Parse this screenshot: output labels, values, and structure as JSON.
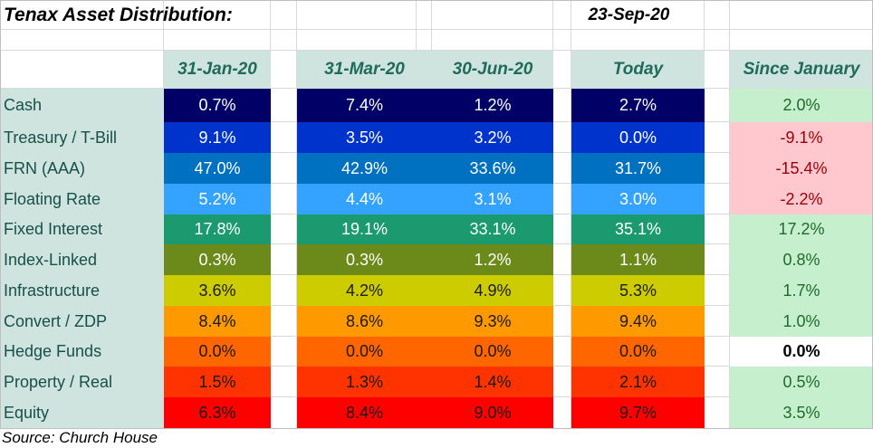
{
  "title": "Tenax Asset Distribution:",
  "date": "23-Sep-20",
  "source": "Source: Church House",
  "colors": {
    "header_fill": "#cfe3df",
    "header_text": "#1f6b5a",
    "positive_fill": "#c6efce",
    "positive_text": "#1e6b2a",
    "negative_fill": "#ffc7ce",
    "negative_text": "#9c0006",
    "row_colors": [
      "#000066",
      "#0033cc",
      "#0070c0",
      "#33a3ff",
      "#1a9a6e",
      "#6b8a1a",
      "#cccc00",
      "#ff9900",
      "#ff6600",
      "#ff3300",
      "#ff0000"
    ]
  },
  "chart_data": {
    "type": "table",
    "columns": [
      "31-Jan-20",
      "31-Mar-20",
      "30-Jun-20",
      "Today",
      "Since January"
    ],
    "rows": [
      {
        "label": "Cash",
        "values": [
          "0.7%",
          "7.4%",
          "1.2%",
          "2.7%"
        ],
        "change": "2.0%"
      },
      {
        "label": "Treasury / T-Bill",
        "values": [
          "9.1%",
          "3.5%",
          "3.2%",
          "0.0%"
        ],
        "change": "-9.1%"
      },
      {
        "label": "FRN (AAA)",
        "values": [
          "47.0%",
          "42.9%",
          "33.6%",
          "31.7%"
        ],
        "change": "-15.4%"
      },
      {
        "label": "Floating Rate",
        "values": [
          "5.2%",
          "4.4%",
          "3.1%",
          "3.0%"
        ],
        "change": "-2.2%"
      },
      {
        "label": "Fixed Interest",
        "values": [
          "17.8%",
          "19.1%",
          "33.1%",
          "35.1%"
        ],
        "change": "17.2%"
      },
      {
        "label": "Index-Linked",
        "values": [
          "0.3%",
          "0.3%",
          "1.2%",
          "1.1%"
        ],
        "change": "0.8%"
      },
      {
        "label": "Infrastructure",
        "values": [
          "3.6%",
          "4.2%",
          "4.9%",
          "5.3%"
        ],
        "change": "1.7%"
      },
      {
        "label": "Convert / ZDP",
        "values": [
          "8.4%",
          "8.6%",
          "9.3%",
          "9.4%"
        ],
        "change": "1.0%"
      },
      {
        "label": "Hedge Funds",
        "values": [
          "0.0%",
          "0.0%",
          "0.0%",
          "0.0%"
        ],
        "change": "0.0%"
      },
      {
        "label": "Property / Real",
        "values": [
          "1.5%",
          "1.3%",
          "1.4%",
          "2.1%"
        ],
        "change": "0.5%"
      },
      {
        "label": "Equity",
        "values": [
          "6.3%",
          "8.4%",
          "9.0%",
          "9.7%"
        ],
        "change": "3.5%"
      }
    ]
  }
}
